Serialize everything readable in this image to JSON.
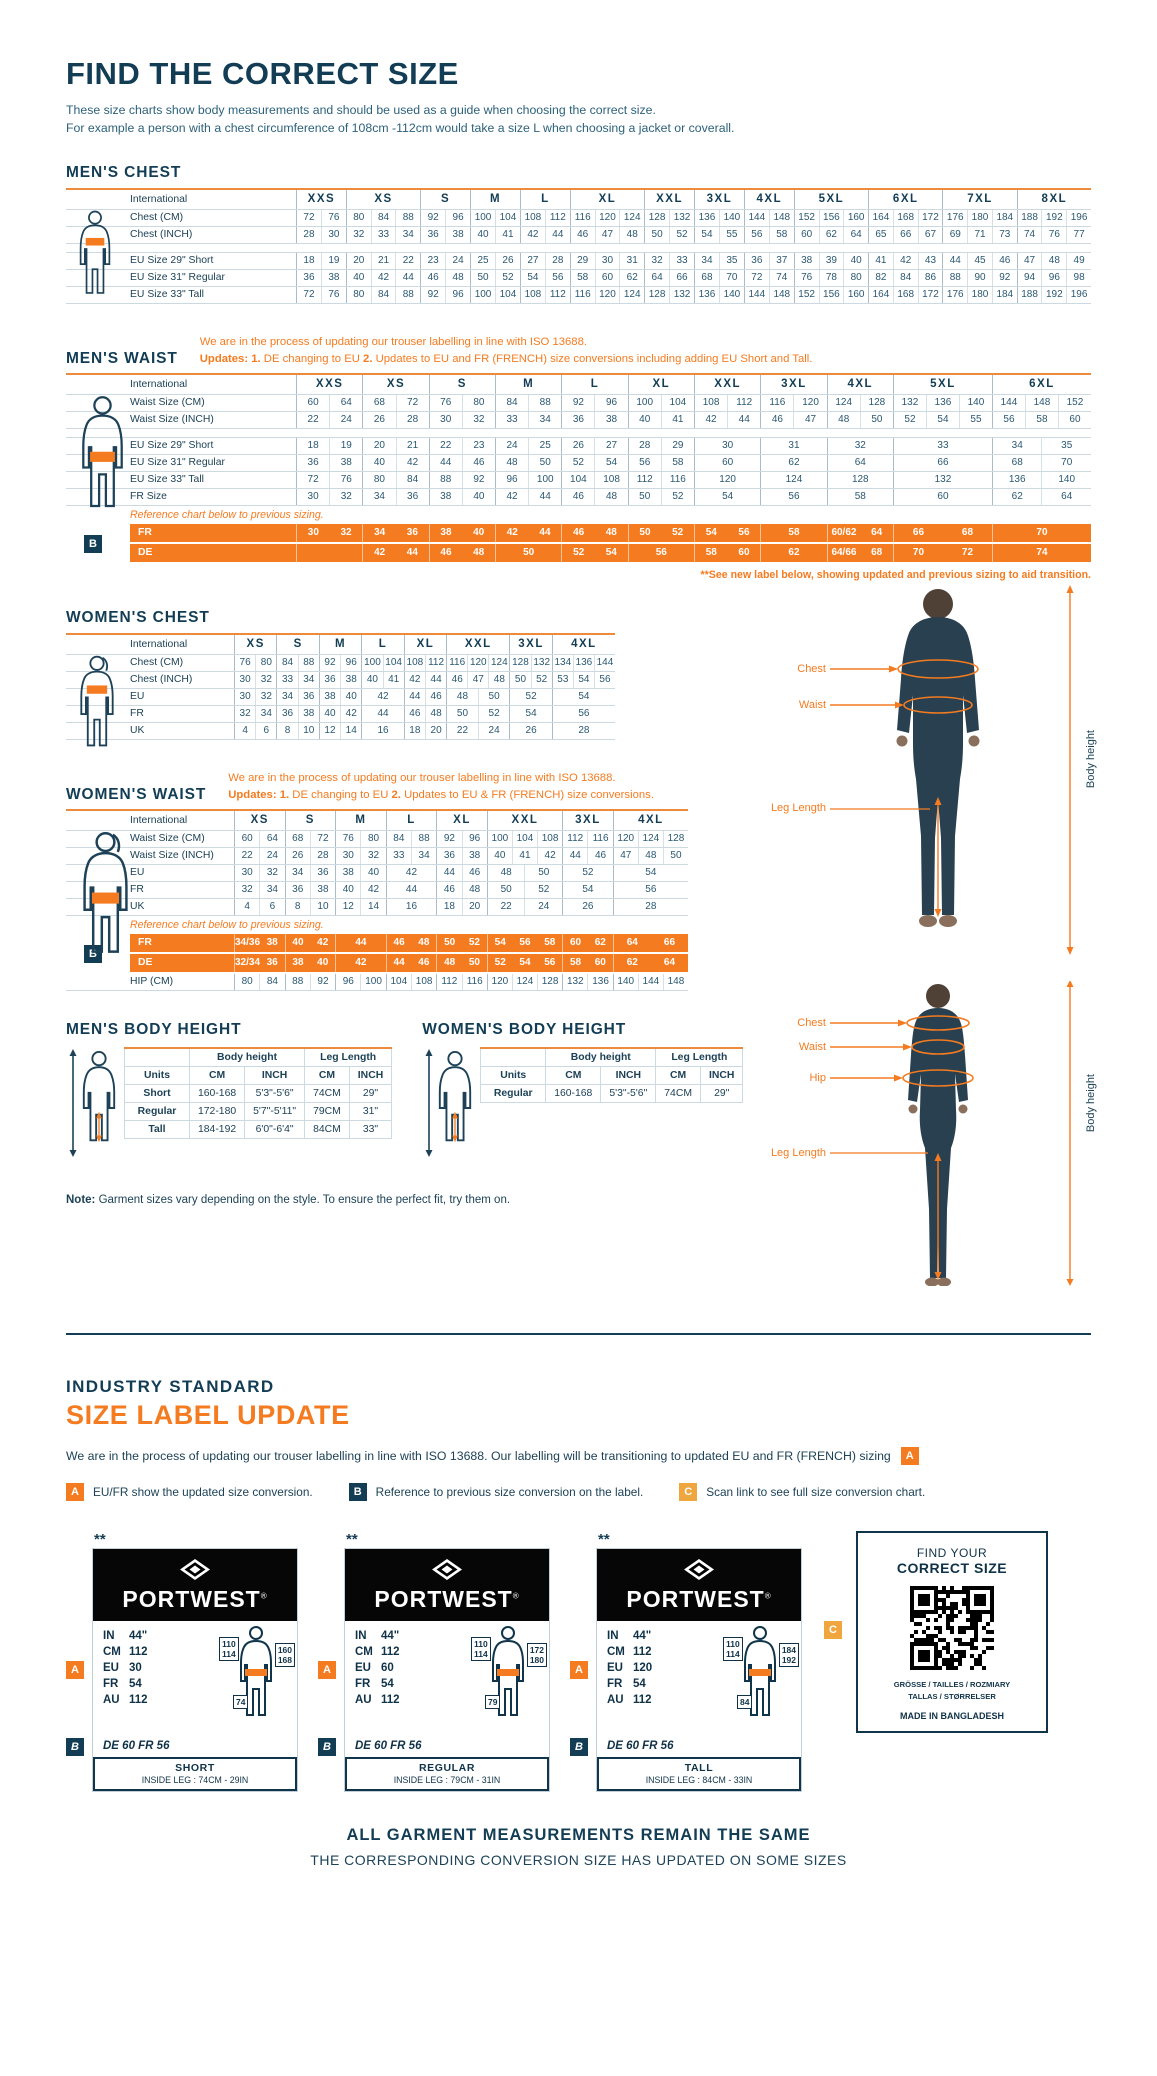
{
  "header": {
    "title": "FIND THE CORRECT SIZE",
    "subtitle1": "These size charts show body measurements and should be used as a guide when choosing the correct size.",
    "subtitle2": "For example a person with a chest circumference of 108cm -112cm would take a size L when choosing a jacket or coverall."
  },
  "colors": {
    "navy": "#123d55",
    "orange": "#f47b20",
    "amber": "#f0a63f",
    "table_border": "#ccd9e1",
    "label_black": "#060606"
  },
  "tables": {
    "mens_chest": {
      "title": "MEN'S CHEST",
      "header_label": "International",
      "columns": [
        {
          "label": "XXS",
          "span": 2
        },
        {
          "label": "XS",
          "span": 3
        },
        {
          "label": "S",
          "span": 2
        },
        {
          "label": "M",
          "span": 2
        },
        {
          "label": "L",
          "span": 2
        },
        {
          "label": "XL",
          "span": 3
        },
        {
          "label": "XXL",
          "span": 2
        },
        {
          "label": "3XL",
          "span": 2
        },
        {
          "label": "4XL",
          "span": 2
        },
        {
          "label": "5XL",
          "span": 3
        },
        {
          "label": "6XL",
          "span": 3
        },
        {
          "label": "7XL",
          "span": 3
        },
        {
          "label": "8XL",
          "span": 3
        }
      ],
      "rows": [
        {
          "label": "Chest (CM)",
          "cells": [
            "72 76",
            "80 84 88",
            "92 96",
            "100 104",
            "108 112",
            "116 120 124",
            "128 132",
            "136 140",
            "144 148",
            "152 156 160",
            "164 168 172",
            "176 180 184",
            "188 192 196"
          ]
        },
        {
          "label": "Chest (INCH)",
          "cells": [
            "28 30",
            "32 33 34",
            "36 38",
            "40 41",
            "42 44",
            "46 47 48",
            "50 52",
            "54 55",
            "56 58",
            "60 62 64",
            "65 66 67",
            "69 71 73",
            "74 76 77"
          ]
        },
        {
          "spacer": true
        },
        {
          "label": "EU Size 29\" Short",
          "cells": [
            "18 19",
            "20 21 22",
            "23 24",
            "25 26",
            "27 28",
            "29 30 31",
            "32 33",
            "34 35",
            "36 37",
            "38 39 40",
            "41 42 43",
            "44 45 46",
            "47 48 49"
          ]
        },
        {
          "label": "EU Size 31\" Regular",
          "cells": [
            "36 38",
            "40 42 44",
            "46 48",
            "50 52",
            "54 56",
            "58 60 62",
            "64 66",
            "68 70",
            "72 74",
            "76 78 80",
            "82 84 86",
            "88 90 92",
            "94 96 98"
          ]
        },
        {
          "label": "EU Size 33\" Tall",
          "cells": [
            "72 76",
            "80 84 88",
            "92 96",
            "100 104",
            "108 112",
            "116 120 124",
            "128 132",
            "136 140",
            "144 148",
            "152 156 160",
            "164 168 172",
            "176 180 184",
            "188 192 196"
          ]
        }
      ]
    },
    "mens_waist": {
      "title": "MEN'S WAIST",
      "note1": "We are in the process of updating our trouser labelling in line with ISO 13688.",
      "note2": [
        [
          "b",
          "Updates:"
        ],
        [
          "t",
          "   "
        ],
        [
          "b",
          "1."
        ],
        [
          "t",
          " DE changing to EU    "
        ],
        [
          "b",
          "2."
        ],
        [
          "t",
          " Updates to EU and FR (FRENCH) size conversions including adding EU Short and Tall."
        ]
      ],
      "header_label": "International",
      "columns": [
        {
          "label": "XXS",
          "span": 2
        },
        {
          "label": "XS",
          "span": 2
        },
        {
          "label": "S",
          "span": 2
        },
        {
          "label": "M",
          "span": 2
        },
        {
          "label": "L",
          "span": 2
        },
        {
          "label": "XL",
          "span": 2
        },
        {
          "label": "XXL",
          "span": 2
        },
        {
          "label": "3XL",
          "span": 2
        },
        {
          "label": "4XL",
          "span": 2
        },
        {
          "label": "5XL",
          "span": 3
        },
        {
          "label": "6XL",
          "span": 3
        }
      ],
      "rows": [
        {
          "label": "Waist Size (CM)",
          "cells": [
            "60 64",
            "68 72",
            "76 80",
            "84 88",
            "92 96",
            "100 104",
            "108 112",
            "116 120",
            "124 128",
            "132 136 140",
            "144 148 152"
          ]
        },
        {
          "label": "Waist Size (INCH)",
          "cells": [
            "22 24",
            "26 28",
            "30 32",
            "33 34",
            "36 38",
            "40 41",
            "42 44",
            "46 47",
            "48 50",
            "52 54 55",
            "56 58 60"
          ]
        },
        {
          "spacer": true
        },
        {
          "label": "EU Size 29\" Short",
          "cells": [
            "18 19",
            "20 21",
            "22 23",
            "24 25",
            "26 27",
            "28 29",
            "30",
            "31",
            "32",
            "33",
            "34 35"
          ]
        },
        {
          "label": "EU Size 31\" Regular",
          "cells": [
            "36 38",
            "40 42",
            "44 46",
            "48 50",
            "52 54",
            "56 58",
            "60",
            "62",
            "64",
            "66",
            "68 70"
          ]
        },
        {
          "label": "EU Size 33\" Tall",
          "cells": [
            "72 76",
            "80 84",
            "88 92",
            "96 100",
            "104 108",
            "112 116",
            "120",
            "124",
            "128",
            "132",
            "136 140"
          ]
        },
        {
          "label": "FR Size",
          "cells": [
            "30 32",
            "34 36",
            "38 40",
            "42 44",
            "46 48",
            "50 52",
            "54",
            "56",
            "58",
            "60",
            "62 64"
          ]
        }
      ],
      "reference": "Reference chart below to previous sizing.",
      "badge": "B",
      "orange_rows": [
        {
          "label": "FR",
          "cells": [
            "30 32",
            "34 36",
            "38 40",
            "42 44",
            "46 48",
            "50 52",
            "54 56",
            "58",
            "60/62 64",
            "66 68",
            "70"
          ]
        },
        {
          "label": "DE",
          "cells": [
            "",
            "42 44",
            "46 48",
            "50",
            "52 54",
            "56",
            "58 60",
            "62",
            "64/66 68",
            "70 72",
            "74"
          ]
        }
      ],
      "footnote": "**See new label below, showing updated and previous sizing to aid transition."
    },
    "womens_chest": {
      "title": "WOMEN'S CHEST",
      "header_label": "International",
      "columns": [
        {
          "label": "XS",
          "span": 2
        },
        {
          "label": "S",
          "span": 2
        },
        {
          "label": "M",
          "span": 2
        },
        {
          "label": "L",
          "span": 2
        },
        {
          "label": "XL",
          "span": 2
        },
        {
          "label": "XXL",
          "span": 3
        },
        {
          "label": "3XL",
          "span": 2
        },
        {
          "label": "4XL",
          "span": 3
        }
      ],
      "rows": [
        {
          "label": "Chest (CM)",
          "cells": [
            "76 80",
            "84 88",
            "92 96",
            "100 104",
            "108 112",
            "116 120 124",
            "128 132",
            "134 136 144"
          ]
        },
        {
          "label": "Chest (INCH)",
          "cells": [
            "30 32",
            "33 34",
            "36 38",
            "40 41",
            "42 44",
            "46 47 48",
            "50 52",
            "53 54 56"
          ]
        },
        {
          "label": "EU",
          "cells": [
            "30 32",
            "34 36",
            "38 40",
            "42",
            "44 46",
            "48 50",
            "52",
            "54"
          ]
        },
        {
          "label": "FR",
          "cells": [
            "32 34",
            "36 38",
            "40 42",
            "44",
            "46 48",
            "50 52",
            "54",
            "56"
          ]
        },
        {
          "label": "UK",
          "cells": [
            "4 6",
            "8 10",
            "12 14",
            "16",
            "18 20",
            "22 24",
            "26",
            "28"
          ]
        }
      ]
    },
    "womens_waist": {
      "title": "WOMEN'S WAIST",
      "note1": "We are in the process of updating our trouser labelling in line with ISO 13688.",
      "note2": [
        [
          "b",
          "Updates:"
        ],
        [
          "t",
          "   "
        ],
        [
          "b",
          "1."
        ],
        [
          "t",
          " DE changing to EU    "
        ],
        [
          "b",
          "2."
        ],
        [
          "t",
          " Updates to EU & FR (FRENCH) size conversions."
        ]
      ],
      "header_label": "International",
      "columns": [
        {
          "label": "XS",
          "span": 2
        },
        {
          "label": "S",
          "span": 2
        },
        {
          "label": "M",
          "span": 2
        },
        {
          "label": "L",
          "span": 2
        },
        {
          "label": "XL",
          "span": 2
        },
        {
          "label": "XXL",
          "span": 3
        },
        {
          "label": "3XL",
          "span": 2
        },
        {
          "label": "4XL",
          "span": 3
        }
      ],
      "rows": [
        {
          "label": "Waist Size (CM)",
          "cells": [
            "60 64",
            "68 72",
            "76 80",
            "84 88",
            "92 96",
            "100 104 108",
            "112 116",
            "120 124 128"
          ]
        },
        {
          "label": "Waist Size (INCH)",
          "cells": [
            "22 24",
            "26 28",
            "30 32",
            "33 34",
            "36 38",
            "40 41 42",
            "44 46",
            "47 48 50"
          ]
        },
        {
          "label": "EU",
          "cells": [
            "30 32",
            "34 36",
            "38 40",
            "42",
            "44 46",
            "48 50",
            "52",
            "54"
          ]
        },
        {
          "label": "FR",
          "cells": [
            "32 34",
            "36 38",
            "40 42",
            "44",
            "46 48",
            "50 52",
            "54",
            "56"
          ]
        },
        {
          "label": "UK",
          "cells": [
            "4 6",
            "8 10",
            "12 14",
            "16",
            "18 20",
            "22 24",
            "26",
            "28"
          ]
        }
      ],
      "reference": "Reference chart below to previous sizing.",
      "badge": "B",
      "orange_rows": [
        {
          "label": "FR",
          "cells": [
            "34/36 38",
            "40 42",
            "44",
            "46 48",
            "50 52",
            "54 56 58",
            "60 62",
            "64 66"
          ]
        },
        {
          "label": "DE",
          "cells": [
            "32/34 36",
            "38 40",
            "42",
            "44 46",
            "48 50",
            "52 54 56",
            "58 60",
            "62 64"
          ]
        }
      ],
      "extra_rows": [
        {
          "label": "HIP (CM)",
          "cells": [
            "80 84",
            "88 92",
            "96 100",
            "104 108",
            "112 116",
            "120 124 128",
            "132 136",
            "140 144 148"
          ]
        }
      ]
    },
    "mens_height": {
      "title": "MEN'S BODY HEIGHT",
      "group_headers": [
        "Body height",
        "Leg Length"
      ],
      "col_headers": [
        "Units",
        "CM",
        "INCH",
        "CM",
        "INCH"
      ],
      "rows": [
        [
          "Short",
          "160-168",
          "5'3\"-5'6\"",
          "74CM",
          "29\""
        ],
        [
          "Regular",
          "172-180",
          "5'7\"-5'11\"",
          "79CM",
          "31\""
        ],
        [
          "Tall",
          "184-192",
          "6'0\"-6'4\"",
          "84CM",
          "33\""
        ]
      ]
    },
    "womens_height": {
      "title": "WOMEN'S BODY HEIGHT",
      "group_headers": [
        "Body height",
        "Leg Length"
      ],
      "col_headers": [
        "Units",
        "CM",
        "INCH",
        "CM",
        "INCH"
      ],
      "rows": [
        [
          "Regular",
          "160-168",
          "5'3\"-5'6\"",
          "74CM",
          "29\""
        ]
      ]
    }
  },
  "figures": {
    "man": {
      "labels": [
        "Chest",
        "Waist",
        "Leg Length"
      ],
      "height_label": "Body height"
    },
    "woman": {
      "labels": [
        "Chest",
        "Waist",
        "Hip",
        "Leg Length"
      ],
      "height_label": "Body height"
    }
  },
  "note": {
    "bold": "Note:",
    "text": " Garment sizes vary depending on the style. To ensure the perfect fit, try them on."
  },
  "update": {
    "kicker": "INDUSTRY STANDARD",
    "title": "SIZE LABEL UPDATE",
    "intro": "We are in the process of updating our trouser labelling in line with ISO 13688. Our labelling will be transitioning to updated EU and FR (FRENCH) sizing",
    "intro_badge": "A",
    "legend": [
      {
        "badge": "A",
        "text": "EU/FR show the updated size conversion."
      },
      {
        "badge": "B",
        "text": "Reference to previous size conversion on the label."
      },
      {
        "badge": "C",
        "text": "Scan link to see full size conversion chart."
      }
    ],
    "cards": [
      {
        "stars": "**",
        "brand": "PORTWEST",
        "reg": "®",
        "badge_a": "A",
        "badge_b": "B",
        "rows": [
          [
            "IN",
            "44\""
          ],
          [
            "CM",
            "112"
          ],
          [
            "EU",
            "30"
          ],
          [
            "FR",
            "54"
          ],
          [
            "AU",
            "112"
          ]
        ],
        "de_row": "DE 60 FR 56",
        "chest_box": [
          "110",
          "114"
        ],
        "height_box": [
          "160",
          "168"
        ],
        "waist_box": "74",
        "fit": "SHORT",
        "inside_leg": "INSIDE LEG : 74CM - 29IN"
      },
      {
        "stars": "**",
        "brand": "PORTWEST",
        "reg": "®",
        "badge_a": "A",
        "badge_b": "B",
        "rows": [
          [
            "IN",
            "44\""
          ],
          [
            "CM",
            "112"
          ],
          [
            "EU",
            "60"
          ],
          [
            "FR",
            "54"
          ],
          [
            "AU",
            "112"
          ]
        ],
        "de_row": "DE 60 FR 56",
        "chest_box": [
          "110",
          "114"
        ],
        "height_box": [
          "172",
          "180"
        ],
        "waist_box": "79",
        "fit": "REGULAR",
        "inside_leg": "INSIDE LEG : 79CM - 31IN"
      },
      {
        "stars": "**",
        "brand": "PORTWEST",
        "reg": "®",
        "badge_a": "A",
        "badge_b": "B",
        "rows": [
          [
            "IN",
            "44\""
          ],
          [
            "CM",
            "112"
          ],
          [
            "EU",
            "120"
          ],
          [
            "FR",
            "54"
          ],
          [
            "AU",
            "112"
          ]
        ],
        "de_row": "DE 60 FR 56",
        "chest_box": [
          "110",
          "114"
        ],
        "height_box": [
          "184",
          "192"
        ],
        "waist_box": "84",
        "fit": "TALL",
        "inside_leg": "INSIDE LEG : 84CM - 33IN"
      }
    ],
    "qr": {
      "badge": "C",
      "line1": "FIND YOUR",
      "line2": "CORRECT SIZE",
      "langs1": "GRÖSSE / TAILLES / ROZMIARY",
      "langs2": "TALLAS / STØRRELSER",
      "made": "MADE IN BANGLADESH"
    },
    "footer1": "ALL GARMENT MEASUREMENTS REMAIN THE SAME",
    "footer2": "THE CORRESPONDING CONVERSION SIZE HAS UPDATED ON SOME SIZES"
  }
}
